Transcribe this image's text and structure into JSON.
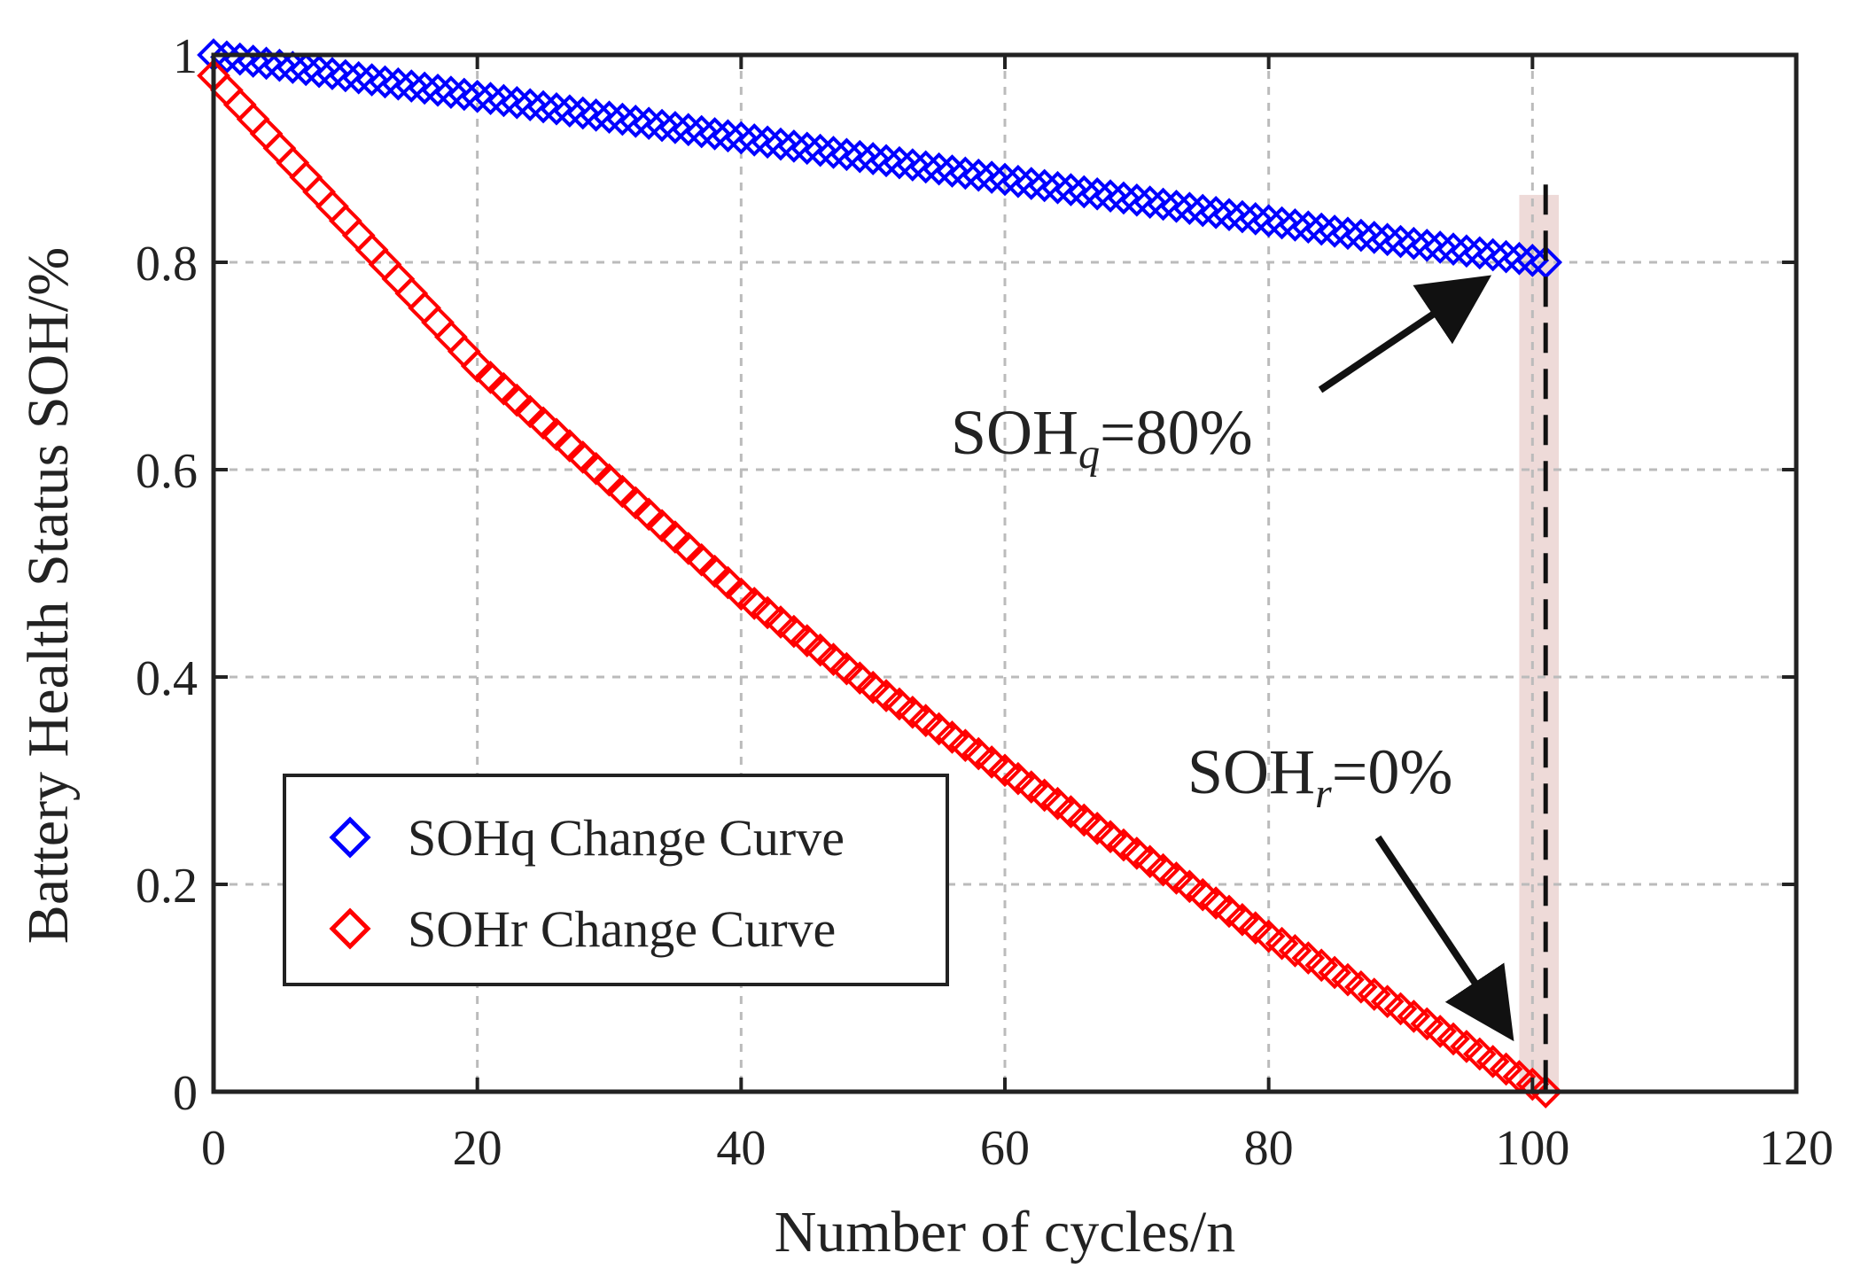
{
  "chart_data": {
    "type": "scatter",
    "title": "",
    "xlabel": "Number of cycles/n",
    "ylabel": "Battery Health Status SOH/%",
    "xlim": [
      0,
      120
    ],
    "ylim": [
      0,
      1
    ],
    "x_ticks": [
      "0",
      "20",
      "40",
      "60",
      "80",
      "100",
      "120"
    ],
    "y_ticks": [
      "0",
      "0.2",
      "0.4",
      "0.6",
      "0.8",
      "1"
    ],
    "grid": true,
    "legend_position": "bottom-left",
    "marker": "diamond",
    "series": [
      {
        "name": "SOHq Change Curve",
        "color": "#0000ff",
        "x": [
          0,
          10,
          20,
          30,
          40,
          50,
          60,
          70,
          80,
          90,
          101
        ],
        "y": [
          1.0,
          0.98,
          0.96,
          0.94,
          0.92,
          0.9,
          0.88,
          0.86,
          0.84,
          0.82,
          0.8
        ]
      },
      {
        "name": "SOHr Change Curve",
        "color": "#ff0000",
        "x": [
          0,
          10,
          20,
          30,
          40,
          50,
          60,
          70,
          80,
          90,
          101
        ],
        "y": [
          0.98,
          0.84,
          0.7,
          0.59,
          0.48,
          0.39,
          0.31,
          0.23,
          0.15,
          0.08,
          0.0
        ]
      }
    ],
    "end_cycle": 101,
    "shaded_band": [
      99,
      102
    ],
    "annotations": [
      {
        "main": "SOH",
        "sub": "q",
        "suffix": "=80%",
        "target": [
          96,
          0.78
        ]
      },
      {
        "main": "SOH",
        "sub": "r",
        "suffix": "=0%",
        "target": [
          98,
          0.06
        ]
      }
    ],
    "colors": {
      "soh_q": "#0000ff",
      "soh_r": "#ff0000",
      "band": "#ecd6d4",
      "grid": "#bbbbbb",
      "axis": "#222222"
    }
  }
}
